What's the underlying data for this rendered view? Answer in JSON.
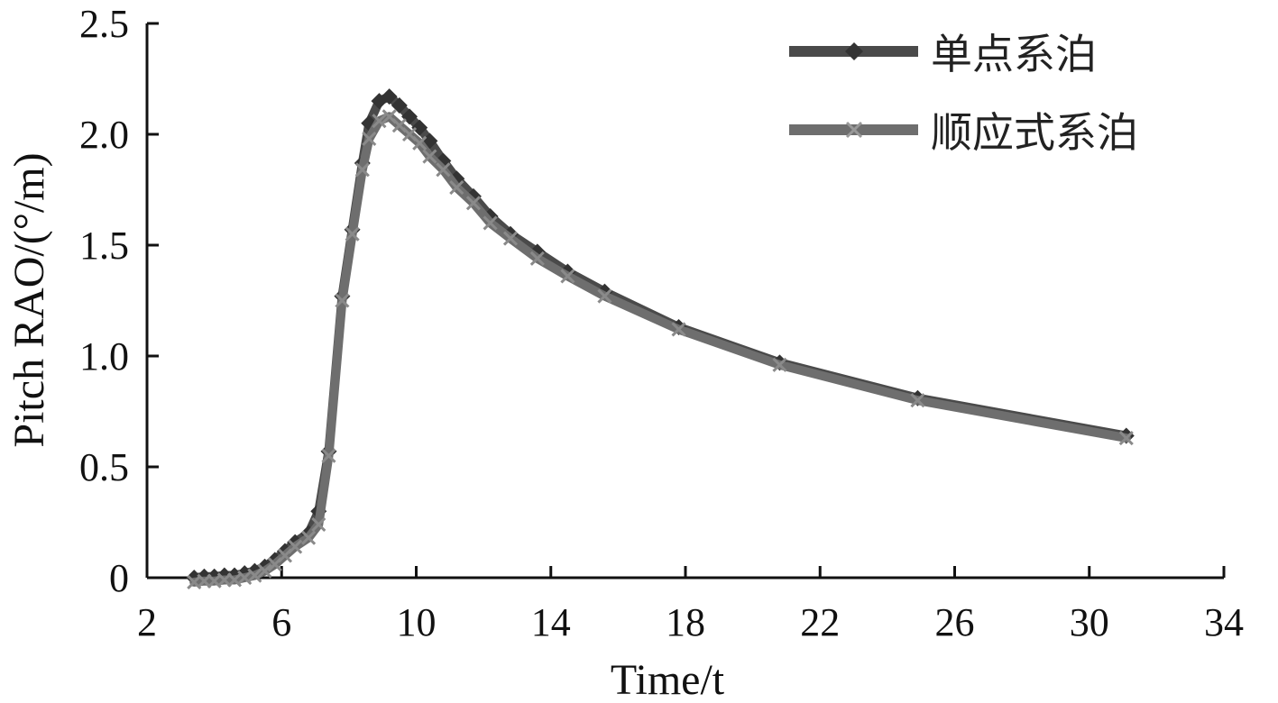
{
  "chart_data": {
    "type": "line",
    "xlabel": "Time/t",
    "ylabel": "Pitch RAO/(°/m)",
    "xlim": [
      2,
      34
    ],
    "ylim": [
      0,
      2.5
    ],
    "x_ticks": [
      "2",
      "6",
      "10",
      "14",
      "18",
      "22",
      "26",
      "30",
      "34"
    ],
    "y_ticks": [
      "0",
      "0.5",
      "1.0",
      "1.5",
      "2.0",
      "2.5"
    ],
    "legend_position": "top-right",
    "series": [
      {
        "name": "单点系泊",
        "color": "#4a4a4a",
        "marker": "diamond",
        "points": [
          [
            3.4,
            0.0
          ],
          [
            3.7,
            0.005
          ],
          [
            4.0,
            0.005
          ],
          [
            4.3,
            0.01
          ],
          [
            4.6,
            0.01
          ],
          [
            4.9,
            0.02
          ],
          [
            5.2,
            0.03
          ],
          [
            5.5,
            0.05
          ],
          [
            5.8,
            0.08
          ],
          [
            6.1,
            0.12
          ],
          [
            6.4,
            0.16
          ],
          [
            6.8,
            0.2
          ],
          [
            7.1,
            0.3
          ],
          [
            7.4,
            0.57
          ],
          [
            7.8,
            1.27
          ],
          [
            8.1,
            1.57
          ],
          [
            8.4,
            1.87
          ],
          [
            8.6,
            2.05
          ],
          [
            8.9,
            2.15
          ],
          [
            9.2,
            2.17
          ],
          [
            9.5,
            2.13
          ],
          [
            9.8,
            2.08
          ],
          [
            10.1,
            2.03
          ],
          [
            10.4,
            1.97
          ],
          [
            10.8,
            1.88
          ],
          [
            11.2,
            1.8
          ],
          [
            11.7,
            1.72
          ],
          [
            12.2,
            1.63
          ],
          [
            12.8,
            1.55
          ],
          [
            13.6,
            1.47
          ],
          [
            14.5,
            1.38
          ],
          [
            15.6,
            1.29
          ],
          [
            17.8,
            1.13
          ],
          [
            20.8,
            0.97
          ],
          [
            24.9,
            0.81
          ],
          [
            31.1,
            0.64
          ]
        ]
      },
      {
        "name": "顺应式系泊",
        "color": "#6e6e6e",
        "marker": "cross",
        "points": [
          [
            3.4,
            -0.02
          ],
          [
            3.7,
            -0.015
          ],
          [
            4.0,
            -0.015
          ],
          [
            4.3,
            -0.01
          ],
          [
            4.6,
            -0.01
          ],
          [
            4.9,
            0.0
          ],
          [
            5.2,
            0.01
          ],
          [
            5.5,
            0.03
          ],
          [
            5.8,
            0.06
          ],
          [
            6.1,
            0.1
          ],
          [
            6.4,
            0.14
          ],
          [
            6.8,
            0.18
          ],
          [
            7.1,
            0.24
          ],
          [
            7.4,
            0.55
          ],
          [
            7.8,
            1.25
          ],
          [
            8.1,
            1.55
          ],
          [
            8.4,
            1.84
          ],
          [
            8.6,
            1.98
          ],
          [
            8.9,
            2.06
          ],
          [
            9.2,
            2.08
          ],
          [
            9.5,
            2.04
          ],
          [
            9.8,
            2.0
          ],
          [
            10.1,
            1.96
          ],
          [
            10.4,
            1.9
          ],
          [
            10.8,
            1.84
          ],
          [
            11.2,
            1.76
          ],
          [
            11.7,
            1.69
          ],
          [
            12.2,
            1.6
          ],
          [
            12.8,
            1.53
          ],
          [
            13.6,
            1.44
          ],
          [
            14.5,
            1.36
          ],
          [
            15.6,
            1.27
          ],
          [
            17.8,
            1.12
          ],
          [
            20.8,
            0.96
          ],
          [
            24.9,
            0.8
          ],
          [
            31.1,
            0.63
          ]
        ]
      }
    ]
  }
}
